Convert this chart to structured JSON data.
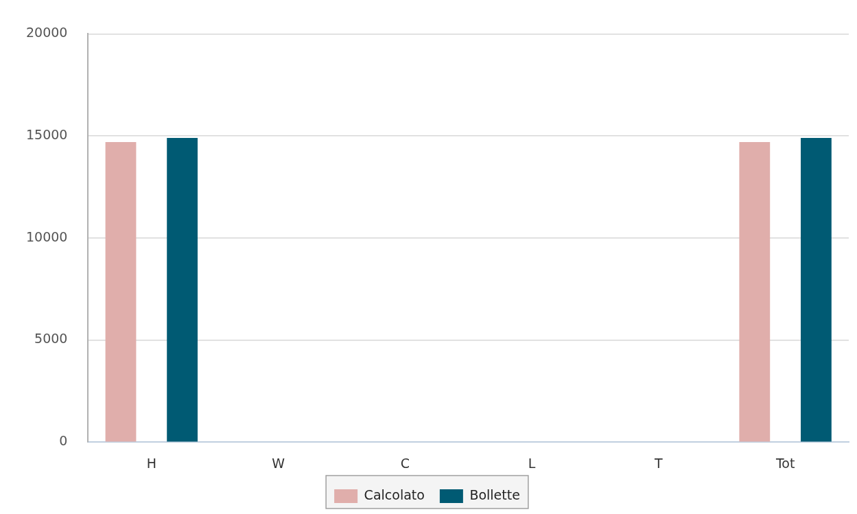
{
  "chart_data": {
    "type": "bar",
    "categories": [
      "H",
      "W",
      "C",
      "L",
      "T",
      "Tot"
    ],
    "series": [
      {
        "name": "Calcolato",
        "color": "#e0aeab",
        "values": [
          14700,
          0,
          0,
          0,
          0,
          14700
        ]
      },
      {
        "name": "Bollette",
        "color": "#005a73",
        "values": [
          14900,
          0,
          0,
          0,
          0,
          14900
        ]
      }
    ],
    "ylim": [
      0,
      20000
    ],
    "yticks": [
      0,
      5000,
      10000,
      15000,
      20000
    ],
    "grid": "y",
    "legend": "bottom"
  }
}
